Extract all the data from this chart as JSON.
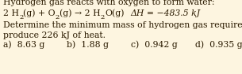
{
  "background_color": "#fdf5e0",
  "title_line": "Hydrogen gas reacts with oxygen to form water:",
  "question_line1": "Determine the minimum mass of hydrogen gas required to",
  "question_line2": "produce 226 kJ of heat.",
  "answer_a": "a)  8.63 g",
  "answer_b": "b)  1.88 g",
  "answer_c": "c)  0.942 g",
  "answer_d": "d)  0.935 g",
  "delta_h": "ΔH = −483.5 kJ",
  "text_color": "#2a1a00",
  "font_size": 7.8,
  "fig_width": 3.05,
  "fig_height": 0.94,
  "dpi": 100
}
